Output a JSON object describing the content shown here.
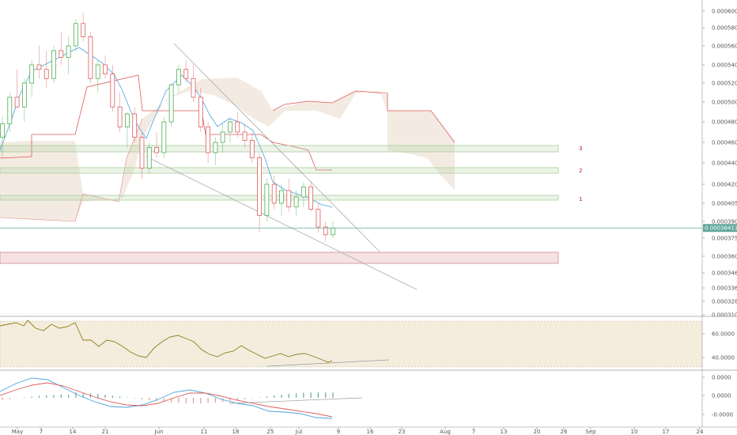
{
  "chart_data": [
    {
      "type": "candlestick",
      "title": "",
      "price_axis": {
        "ticks": [
          "0.00060000",
          "0.00058000",
          "0.00056000",
          "0.00054000",
          "0.00052000",
          "0.00050000",
          "0.00048000",
          "0.00046000",
          "0.00044000",
          "0.00042000",
          "0.00040500",
          "0.00039000",
          "0.00037500",
          "0.00036000",
          "0.00034600",
          "0.00033600",
          "0.00032800",
          "0.00031050"
        ],
        "last_price": "0.00038411",
        "last_color": "#5fa89b",
        "ylim": [
          0.00031,
          0.000606
        ]
      },
      "time_axis": {
        "ticks": [
          "May",
          "7",
          "14",
          "21",
          "Jun",
          "11",
          "18",
          "25",
          "Jul",
          "9",
          "16",
          "23",
          "Aug",
          "7",
          "13",
          "20",
          "26",
          "Sep",
          "10",
          "17",
          "24"
        ]
      },
      "zone_labels": [
        "3",
        "2",
        "1"
      ],
      "colors": {
        "up": "#4caf50",
        "down": "#e05a5a",
        "cloud": "#c9a67a",
        "conversion": "#4aa3df",
        "base": "#e05a5a",
        "zone_green": "#a9cf9a",
        "zone_red": "#e6a8b0"
      },
      "candles": [
        {
          "o": 0.000465,
          "h": 0.000485,
          "l": 0.000445,
          "c": 0.000478
        },
        {
          "o": 0.000478,
          "h": 0.00051,
          "l": 0.00047,
          "c": 0.000505
        },
        {
          "o": 0.000505,
          "h": 0.000535,
          "l": 0.000495,
          "c": 0.000495
        },
        {
          "o": 0.000495,
          "h": 0.000525,
          "l": 0.00048,
          "c": 0.00052
        },
        {
          "o": 0.00052,
          "h": 0.000545,
          "l": 0.000505,
          "c": 0.00054
        },
        {
          "o": 0.00054,
          "h": 0.00056,
          "l": 0.000525,
          "c": 0.000535
        },
        {
          "o": 0.000535,
          "h": 0.000555,
          "l": 0.000515,
          "c": 0.000525
        },
        {
          "o": 0.000525,
          "h": 0.00056,
          "l": 0.00052,
          "c": 0.000555
        },
        {
          "o": 0.000555,
          "h": 0.000575,
          "l": 0.00054,
          "c": 0.000548
        },
        {
          "o": 0.000548,
          "h": 0.00057,
          "l": 0.00053,
          "c": 0.00056
        },
        {
          "o": 0.00056,
          "h": 0.00059,
          "l": 0.000555,
          "c": 0.000585
        },
        {
          "o": 0.000585,
          "h": 0.000598,
          "l": 0.000565,
          "c": 0.00057
        },
        {
          "o": 0.00057,
          "h": 0.000575,
          "l": 0.00052,
          "c": 0.000525
        },
        {
          "o": 0.000525,
          "h": 0.000545,
          "l": 0.00051,
          "c": 0.00054
        },
        {
          "o": 0.00054,
          "h": 0.00055,
          "l": 0.000525,
          "c": 0.00053
        },
        {
          "o": 0.00053,
          "h": 0.00054,
          "l": 0.00049,
          "c": 0.000495
        },
        {
          "o": 0.000495,
          "h": 0.00051,
          "l": 0.00047,
          "c": 0.000475
        },
        {
          "o": 0.000475,
          "h": 0.00049,
          "l": 0.000455,
          "c": 0.000488
        },
        {
          "o": 0.000488,
          "h": 0.000495,
          "l": 0.00046,
          "c": 0.000465
        },
        {
          "o": 0.000465,
          "h": 0.00047,
          "l": 0.000425,
          "c": 0.000435
        },
        {
          "o": 0.000435,
          "h": 0.00046,
          "l": 0.00043,
          "c": 0.000455
        },
        {
          "o": 0.000455,
          "h": 0.00047,
          "l": 0.000445,
          "c": 0.00045
        },
        {
          "o": 0.00045,
          "h": 0.000485,
          "l": 0.000445,
          "c": 0.00048
        },
        {
          "o": 0.00048,
          "h": 0.00052,
          "l": 0.000475,
          "c": 0.000518
        },
        {
          "o": 0.000518,
          "h": 0.00054,
          "l": 0.00051,
          "c": 0.000535
        },
        {
          "o": 0.000535,
          "h": 0.000545,
          "l": 0.00052,
          "c": 0.000525
        },
        {
          "o": 0.000525,
          "h": 0.00054,
          "l": 0.0005,
          "c": 0.000505
        },
        {
          "o": 0.000505,
          "h": 0.000515,
          "l": 0.00047,
          "c": 0.000475
        },
        {
          "o": 0.000475,
          "h": 0.00048,
          "l": 0.00044,
          "c": 0.00045
        },
        {
          "o": 0.00045,
          "h": 0.000465,
          "l": 0.000438,
          "c": 0.00046
        },
        {
          "o": 0.00046,
          "h": 0.000478,
          "l": 0.00045,
          "c": 0.00047
        },
        {
          "o": 0.00047,
          "h": 0.000485,
          "l": 0.00046,
          "c": 0.00048
        },
        {
          "o": 0.00048,
          "h": 0.00049,
          "l": 0.000465,
          "c": 0.00047
        },
        {
          "o": 0.00047,
          "h": 0.000478,
          "l": 0.000455,
          "c": 0.000462
        },
        {
          "o": 0.000462,
          "h": 0.00047,
          "l": 0.00044,
          "c": 0.000445
        },
        {
          "o": 0.000445,
          "h": 0.00045,
          "l": 0.00038,
          "c": 0.000395
        },
        {
          "o": 0.000395,
          "h": 0.000425,
          "l": 0.00039,
          "c": 0.00042
        },
        {
          "o": 0.00042,
          "h": 0.000428,
          "l": 0.0004,
          "c": 0.000405
        },
        {
          "o": 0.000405,
          "h": 0.00042,
          "l": 0.000395,
          "c": 0.000415
        },
        {
          "o": 0.000415,
          "h": 0.000425,
          "l": 0.000398,
          "c": 0.000402
        },
        {
          "o": 0.000402,
          "h": 0.000415,
          "l": 0.000395,
          "c": 0.00041
        },
        {
          "o": 0.00041,
          "h": 0.000422,
          "l": 0.000402,
          "c": 0.000418
        },
        {
          "o": 0.000418,
          "h": 0.000423,
          "l": 0.000398,
          "c": 0.0004
        },
        {
          "o": 0.0004,
          "h": 0.000405,
          "l": 0.00038,
          "c": 0.000385
        },
        {
          "o": 0.000385,
          "h": 0.00039,
          "l": 0.000372,
          "c": 0.000378
        },
        {
          "o": 0.000378,
          "h": 0.00039,
          "l": 0.000375,
          "c": 0.000384
        }
      ]
    },
    {
      "type": "line",
      "name": "oscillator",
      "ticks": [
        "60.0000",
        "40.0000"
      ],
      "color": "#8b7d1a",
      "ylim": [
        30,
        75
      ]
    },
    {
      "type": "histogram",
      "name": "macd",
      "ticks": [
        "0.0000",
        "0.0000",
        "-0.0000"
      ],
      "macd_color": "#4aa3df",
      "signal_color": "#e05a5a"
    }
  ]
}
